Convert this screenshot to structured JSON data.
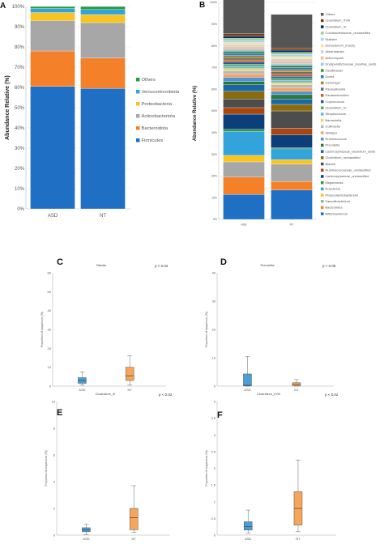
{
  "panels": {
    "a": {
      "letter": "A"
    },
    "b": {
      "letter": "B"
    },
    "c": {
      "letter": "C"
    },
    "d": {
      "letter": "D"
    },
    "e": {
      "letter": "E"
    },
    "f": {
      "letter": "F"
    }
  },
  "chart_data": [
    {
      "type": "bar",
      "panel": "A",
      "stacked": true,
      "ylabel": "Abundance Relative (%)",
      "ylim": [
        0,
        100
      ],
      "yticks": [
        "0%",
        "10%",
        "20%",
        "30%",
        "40%",
        "50%",
        "60%",
        "70%",
        "80%",
        "90%",
        "100%"
      ],
      "categories": [
        "ASD",
        "NT"
      ],
      "legend_position": "right",
      "series": [
        {
          "name": "Firmicutes",
          "color": "#1f6fc5",
          "values": [
            60.5,
            59.5
          ]
        },
        {
          "name": "Bacteroidota",
          "color": "#f4812a",
          "values": [
            17.5,
            15.0
          ]
        },
        {
          "name": "Actinobacteriota",
          "color": "#a7a7a7",
          "values": [
            15.0,
            17.5
          ]
        },
        {
          "name": "Proteobacteria",
          "color": "#f9c322",
          "values": [
            4.0,
            4.0
          ]
        },
        {
          "name": "Verrucomicrobiota",
          "color": "#33a3dc",
          "values": [
            2.0,
            2.5
          ]
        },
        {
          "name": "Others",
          "color": "#2d9a46",
          "values": [
            1.0,
            1.5
          ]
        }
      ]
    },
    {
      "type": "bar",
      "panel": "B",
      "stacked": true,
      "ylabel": "Abundance Relative (%)",
      "ylim": [
        0,
        100
      ],
      "yticks": [
        "0%",
        "10%",
        "20%",
        "30%",
        "40%",
        "50%",
        "60%",
        "70%",
        "80%",
        "90%",
        "100%"
      ],
      "categories": [
        "ASD",
        "NT"
      ],
      "legend_position": "right",
      "series": [
        {
          "name": "Bifidobacterium",
          "color": "#1f6fc5",
          "values": [
            11.5,
            13.5
          ]
        },
        {
          "name": "Bacteroides",
          "color": "#f4812a",
          "values": [
            8.0,
            4.0
          ]
        },
        {
          "name": "Faecalibacterium",
          "color": "#a7a7a7",
          "values": [
            7.0,
            8.0
          ]
        },
        {
          "name": "Phascolarctobacterium",
          "color": "#f9c322",
          "values": [
            3.0,
            2.0
          ]
        },
        {
          "name": "Roseburia",
          "color": "#33a3dc",
          "values": [
            11.0,
            5.0
          ]
        },
        {
          "name": "Megamonas",
          "color": "#2d9a46",
          "values": [
            1.0,
            0.5
          ]
        },
        {
          "name": "Lachnospiraceae_unclassified",
          "color": "#0c3f79",
          "values": [
            7.0,
            6.0
          ]
        },
        {
          "name": "Ruminococcaceae_unclassified",
          "color": "#a8460f",
          "values": [
            3.0,
            3.0
          ]
        },
        {
          "name": "Blautia",
          "color": "#4d4d4d",
          "values": [
            4.0,
            8.0
          ]
        },
        {
          "name": "Clostridium_unclassified",
          "color": "#8a6c0c",
          "values": [
            3.5,
            3.0
          ]
        },
        {
          "name": "Lachnospiraceae_bacterium_sedis",
          "color": "#1a67a8",
          "values": [
            3.0,
            2.5
          ]
        },
        {
          "name": "Prevotella",
          "color": "#2b7a35",
          "values": [
            1.5,
            2.0
          ]
        },
        {
          "name": "Ruminococcus",
          "color": "#5392d7",
          "values": [
            2.0,
            1.5
          ]
        },
        {
          "name": "Alistipes",
          "color": "#f6a45c",
          "values": [
            1.5,
            1.5
          ]
        },
        {
          "name": "Collinsella",
          "color": "#b9b9b9",
          "values": [
            1.5,
            1.5
          ]
        },
        {
          "name": "Barnesiella",
          "color": "#f8d35f",
          "values": [
            1.0,
            1.0
          ]
        },
        {
          "name": "Streptococcus",
          "color": "#69b7e4",
          "values": [
            1.0,
            1.0
          ]
        },
        {
          "name": "Clostridium_IV",
          "color": "#5fae65",
          "values": [
            1.0,
            1.0
          ]
        },
        {
          "name": "Coprococcus",
          "color": "#2a5a9b",
          "values": [
            1.0,
            1.0
          ]
        },
        {
          "name": "Parabacteroides",
          "color": "#c35f2b",
          "values": [
            1.0,
            1.0
          ]
        },
        {
          "name": "Parasutterella",
          "color": "#6e6e6e",
          "values": [
            1.0,
            1.0
          ]
        },
        {
          "name": "Gemmiger",
          "color": "#a58720",
          "values": [
            1.0,
            1.0
          ]
        },
        {
          "name": "Dorea",
          "color": "#2b79c4",
          "values": [
            1.0,
            1.0
          ]
        },
        {
          "name": "Oscillibacter",
          "color": "#3f8f3f",
          "values": [
            1.0,
            1.0
          ]
        },
        {
          "name": "Erysipelotrichaceae_incertae_sedis",
          "color": "#9ec6ee",
          "values": [
            1.0,
            1.0
          ]
        },
        {
          "name": "Actinomyces",
          "color": "#f7b98a",
          "values": [
            1.0,
            1.0
          ]
        },
        {
          "name": "Akkermansia",
          "color": "#d0d0d0",
          "values": [
            1.0,
            1.0
          ]
        },
        {
          "name": "Eubacterium_brachy",
          "color": "#fbe29a",
          "values": [
            1.0,
            1.0
          ]
        },
        {
          "name": "Dialister",
          "color": "#a9d5ee",
          "values": [
            1.0,
            1.0
          ]
        },
        {
          "name": "Coriobacteriaceae_unclassified",
          "color": "#98cc99",
          "values": [
            1.0,
            1.0
          ]
        },
        {
          "name": "Clostridium_XI",
          "color": "#0a2d5c",
          "values": [
            1.0,
            1.0
          ]
        },
        {
          "name": "Clostridium_XVIII",
          "color": "#7a3a10",
          "values": [
            1.0,
            1.0
          ]
        },
        {
          "name": "Others",
          "color": "#555555",
          "values": [
            16.0,
            15.5
          ]
        }
      ]
    },
    {
      "type": "box",
      "panel": "C",
      "title": "Blautia",
      "pvalue": "p < 0.02",
      "ylabel": "Proportion of sequences (%)",
      "ylim": [
        0,
        60
      ],
      "yticks": [
        "0",
        "10",
        "20",
        "30",
        "40",
        "50",
        "60"
      ],
      "categories": [
        "ASD",
        "NT"
      ],
      "boxes": [
        {
          "group": "ASD",
          "min": 0.5,
          "q1": 1.5,
          "median": 3.0,
          "q3": 4.5,
          "max": 7.5,
          "color": "#4a9fd8"
        },
        {
          "group": "NT",
          "min": 0.5,
          "q1": 3.0,
          "median": 5.5,
          "q3": 10.0,
          "max": 16.0,
          "color": "#f5a65b"
        }
      ]
    },
    {
      "type": "box",
      "panel": "D",
      "title": "Prevotella",
      "pvalue": "p < 0.05",
      "ylabel": "Proportion of sequences (%)",
      "ylim": [
        0,
        40
      ],
      "yticks": [
        "0",
        "10",
        "20",
        "30",
        "40"
      ],
      "categories": [
        "ASD",
        "NT"
      ],
      "boxes": [
        {
          "group": "ASD",
          "min": 0,
          "q1": 0.1,
          "median": 0.3,
          "q3": 4.3,
          "max": 10.5,
          "color": "#4a9fd8"
        },
        {
          "group": "NT",
          "min": 0,
          "q1": 0.1,
          "median": 0.6,
          "q3": 1.2,
          "max": 2.3,
          "color": "#f5a65b"
        }
      ]
    },
    {
      "type": "box",
      "panel": "E",
      "title": "Clostridium_XI",
      "pvalue": "p < 0.02",
      "ylabel": "Proportion of sequences (%)",
      "ylim": [
        0,
        10
      ],
      "yticks": [
        "0",
        "2",
        "4",
        "6",
        "8",
        "10"
      ],
      "categories": [
        "ASD",
        "NT"
      ],
      "boxes": [
        {
          "group": "ASD",
          "min": 0.05,
          "q1": 0.25,
          "median": 0.4,
          "q3": 0.55,
          "max": 0.8,
          "color": "#4a9fd8"
        },
        {
          "group": "NT",
          "min": 0.2,
          "q1": 0.4,
          "median": 1.3,
          "q3": 2.0,
          "max": 3.7,
          "color": "#f5a65b"
        }
      ]
    },
    {
      "type": "box",
      "panel": "F",
      "title": "Clostridium_XVIII",
      "pvalue": "p < 0.02",
      "ylabel": "Proportion of sequences (%)",
      "ylim": [
        0,
        4
      ],
      "yticks": [
        "0",
        "0.5",
        "1",
        "1.5",
        "2",
        "2.5",
        "3",
        "3.5",
        "4"
      ],
      "categories": [
        "ASD",
        "NT"
      ],
      "boxes": [
        {
          "group": "ASD",
          "min": 0.05,
          "q1": 0.15,
          "median": 0.25,
          "q3": 0.4,
          "max": 0.75,
          "color": "#4a9fd8"
        },
        {
          "group": "NT",
          "min": 0.1,
          "q1": 0.3,
          "median": 0.8,
          "q3": 1.3,
          "max": 2.25,
          "color": "#f5a65b"
        }
      ]
    }
  ]
}
